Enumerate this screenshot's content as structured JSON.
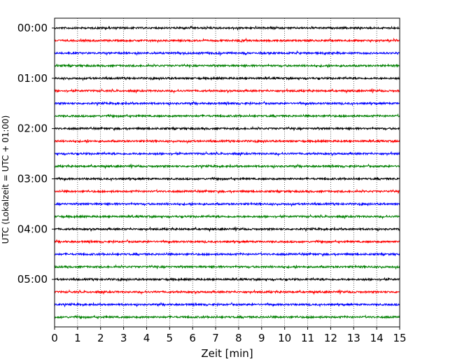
{
  "chart_data": {
    "type": "line",
    "title": "",
    "xlabel": "Zeit  [min]",
    "ylabel": "UTC (Lokalzeit = UTC + 01:00)",
    "xlim": [
      0,
      15
    ],
    "x_ticks": [
      "0",
      "1",
      "2",
      "3",
      "4",
      "5",
      "6",
      "7",
      "8",
      "9",
      "10",
      "11",
      "12",
      "13",
      "14",
      "15"
    ],
    "y_ticks": [
      "00:00",
      "01:00",
      "02:00",
      "03:00",
      "04:00",
      "05:00"
    ],
    "grid": "vertical-dotted",
    "trace_colors": [
      "#000000",
      "#ff0000",
      "#0000ff",
      "#008000"
    ],
    "traces_per_hour": 4,
    "trace_minutes": 15,
    "traces": [
      {
        "start": "00:00",
        "color": "#000000"
      },
      {
        "start": "00:15",
        "color": "#ff0000"
      },
      {
        "start": "00:30",
        "color": "#0000ff"
      },
      {
        "start": "00:45",
        "color": "#008000"
      },
      {
        "start": "01:00",
        "color": "#000000"
      },
      {
        "start": "01:15",
        "color": "#ff0000"
      },
      {
        "start": "01:30",
        "color": "#0000ff"
      },
      {
        "start": "01:45",
        "color": "#008000"
      },
      {
        "start": "02:00",
        "color": "#000000"
      },
      {
        "start": "02:15",
        "color": "#ff0000"
      },
      {
        "start": "02:30",
        "color": "#0000ff"
      },
      {
        "start": "02:45",
        "color": "#008000"
      },
      {
        "start": "03:00",
        "color": "#000000"
      },
      {
        "start": "03:15",
        "color": "#ff0000"
      },
      {
        "start": "03:30",
        "color": "#0000ff"
      },
      {
        "start": "03:45",
        "color": "#008000"
      },
      {
        "start": "04:00",
        "color": "#000000"
      },
      {
        "start": "04:15",
        "color": "#ff0000"
      },
      {
        "start": "04:30",
        "color": "#0000ff"
      },
      {
        "start": "04:45",
        "color": "#008000"
      },
      {
        "start": "05:00",
        "color": "#000000"
      },
      {
        "start": "05:15",
        "color": "#ff0000"
      },
      {
        "start": "05:30",
        "color": "#0000ff"
      },
      {
        "start": "05:45",
        "color": "#008000"
      }
    ]
  }
}
